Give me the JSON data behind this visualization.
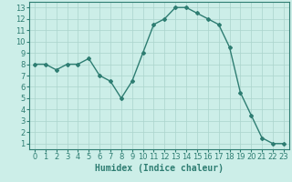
{
  "x": [
    0,
    1,
    2,
    3,
    4,
    5,
    6,
    7,
    8,
    9,
    10,
    11,
    12,
    13,
    14,
    15,
    16,
    17,
    18,
    19,
    20,
    21,
    22,
    23
  ],
  "y": [
    8,
    8,
    7.5,
    8,
    8,
    8.5,
    7,
    6.5,
    5,
    6.5,
    9,
    11.5,
    12,
    13,
    13,
    12.5,
    12,
    11.5,
    9.5,
    5.5,
    3.5,
    1.5,
    1,
    1
  ],
  "line_color": "#2e7d72",
  "marker": "D",
  "marker_size": 2,
  "bg_color": "#cceee8",
  "grid_color": "#aad4cc",
  "xlabel": "Humidex (Indice chaleur)",
  "xlabel_fontsize": 7,
  "ylim_min": 0.5,
  "ylim_max": 13.5,
  "xlim_min": -0.5,
  "xlim_max": 23.5,
  "yticks": [
    1,
    2,
    3,
    4,
    5,
    6,
    7,
    8,
    9,
    10,
    11,
    12,
    13
  ],
  "xticks": [
    0,
    1,
    2,
    3,
    4,
    5,
    6,
    7,
    8,
    9,
    10,
    11,
    12,
    13,
    14,
    15,
    16,
    17,
    18,
    19,
    20,
    21,
    22,
    23
  ],
  "tick_fontsize": 6,
  "axis_color": "#2e7d72",
  "spine_color": "#2e7d72",
  "linewidth": 1.0
}
